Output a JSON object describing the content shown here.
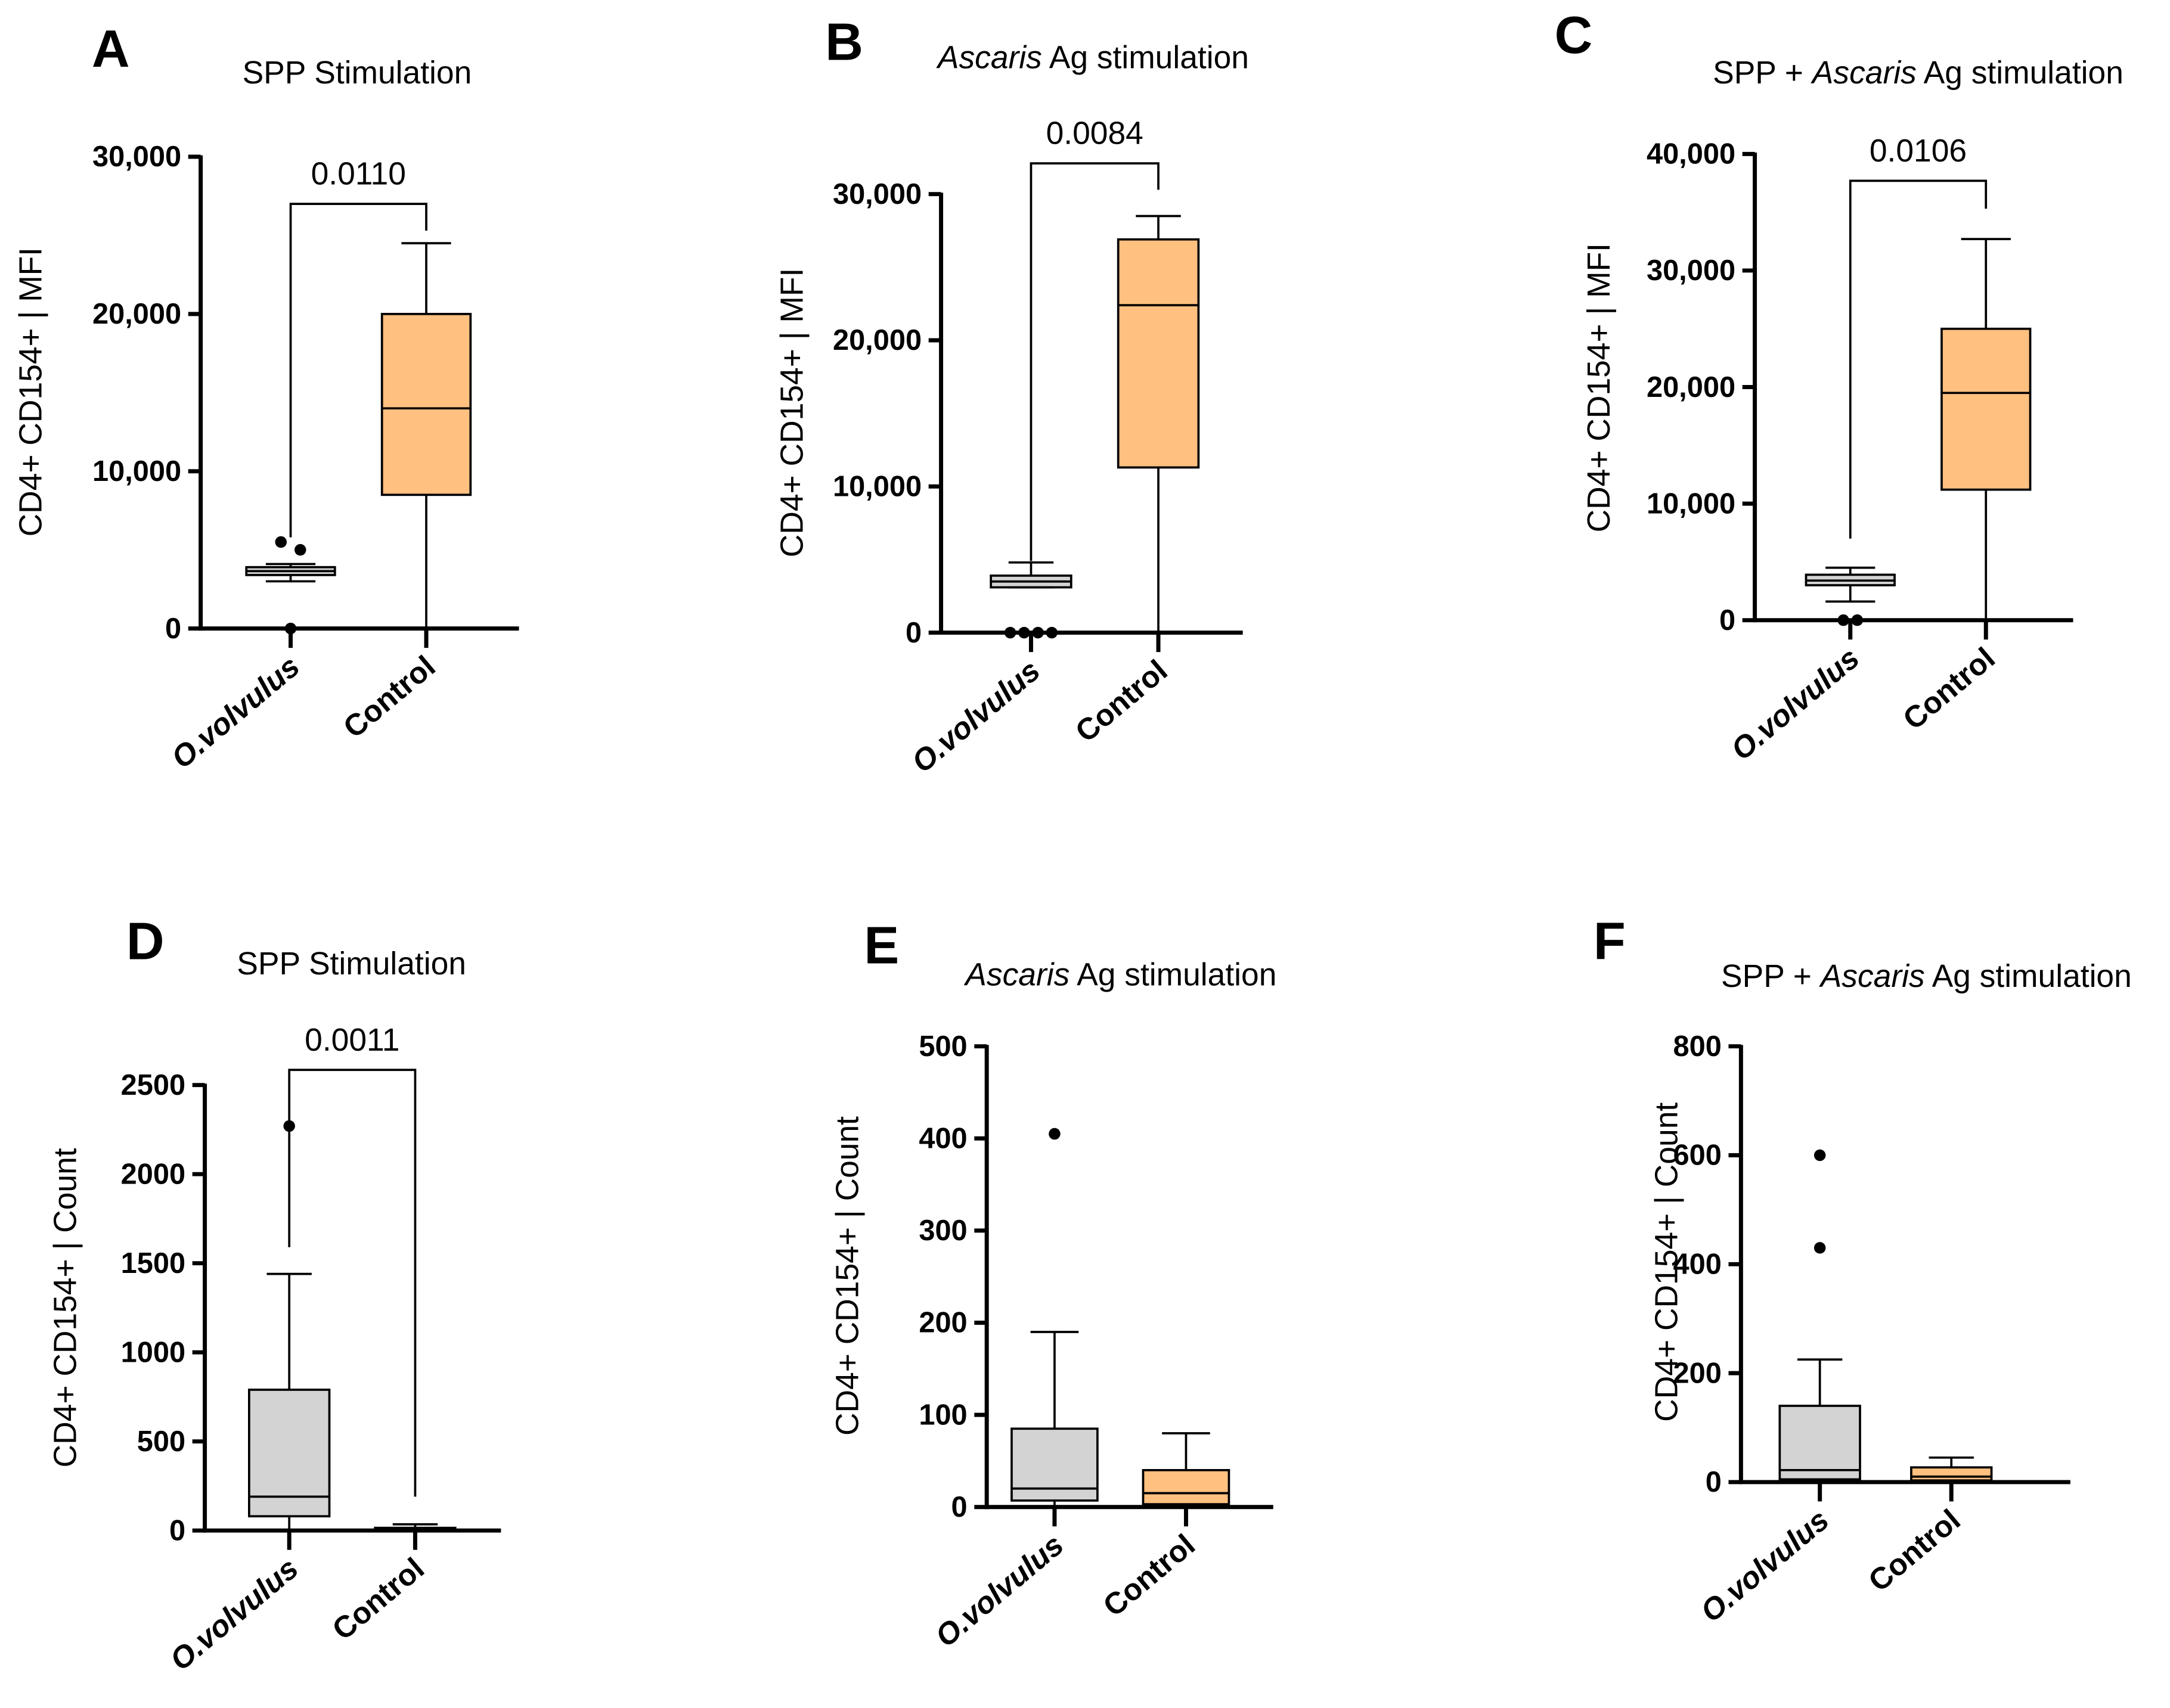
{
  "colors": {
    "ovolvulus": "#d3d3d3",
    "control": "#ffc080",
    "line": "#000000"
  },
  "chart_data": [
    {
      "type": "box",
      "panel": "A",
      "title": {
        "prefix": "SPP Stimulation",
        "italic": "",
        "suffix": ""
      },
      "ylabel": "CD4+ CD154+ | MFI",
      "ylim": [
        0,
        30000
      ],
      "yticks": [
        0,
        10000,
        20000,
        30000
      ],
      "yticklabels": [
        "0",
        "10,000",
        "20,000",
        "30,000"
      ],
      "categories": [
        "O.volvulus",
        "Control"
      ],
      "boxes": [
        {
          "min": 3000,
          "q1": 3400,
          "median": 3650,
          "q3": 3900,
          "max": 4100,
          "outliers": [
            5500,
            5000,
            0
          ]
        },
        {
          "min": 0,
          "q1": 8500,
          "median": 14000,
          "q3": 20000,
          "max": 24500,
          "outliers": []
        }
      ],
      "comparison": {
        "p": "0.0110",
        "level": 27000,
        "left_end": 5800,
        "right_end": 25300
      }
    },
    {
      "type": "box",
      "panel": "B",
      "title": {
        "prefix": "",
        "italic": "Ascaris",
        "suffix": " Ag stimulation"
      },
      "ylabel": "CD4+ CD154+ | MFI",
      "ylim": [
        0,
        30000
      ],
      "yticks": [
        0,
        10000,
        20000,
        30000
      ],
      "yticklabels": [
        "0",
        "10,000",
        "20,000",
        "30,000"
      ],
      "categories": [
        "O.volvulus",
        "Control"
      ],
      "boxes": [
        {
          "min": 3100,
          "q1": 3100,
          "median": 3500,
          "q3": 3900,
          "max": 4800,
          "outliers": [
            0,
            0,
            0,
            0
          ]
        },
        {
          "min": 0,
          "q1": 11300,
          "median": 22400,
          "q3": 26900,
          "max": 28500,
          "outliers": []
        }
      ],
      "comparison": {
        "p": "0.0084",
        "level": 32100,
        "left_end": 4900,
        "right_end": 30300
      }
    },
    {
      "type": "box",
      "panel": "C",
      "title": {
        "prefix": "SPP + ",
        "italic": "Ascaris",
        "suffix": " Ag stimulation"
      },
      "ylabel": "CD4+ CD154+ | MFI",
      "ylim": [
        0,
        40000
      ],
      "yticks": [
        0,
        10000,
        20000,
        30000,
        40000
      ],
      "yticklabels": [
        "0",
        "10,000",
        "20,000",
        "30,000",
        "40,000"
      ],
      "categories": [
        "O.volvulus",
        "Control"
      ],
      "boxes": [
        {
          "min": 1600,
          "q1": 3000,
          "median": 3400,
          "q3": 3900,
          "max": 4500,
          "outliers": [
            0,
            0
          ]
        },
        {
          "min": 0,
          "q1": 11200,
          "median": 19500,
          "q3": 25000,
          "max": 32700,
          "outliers": []
        }
      ],
      "comparison": {
        "p": "0.0106",
        "level": 37700,
        "left_end": 7000,
        "right_end": 35300
      }
    },
    {
      "type": "box",
      "panel": "D",
      "title": {
        "prefix": "SPP Stimulation",
        "italic": "",
        "suffix": ""
      },
      "ylabel": "CD4+ CD154+ | Count",
      "ylim": [
        0,
        2500
      ],
      "yticks": [
        0,
        500,
        1000,
        1500,
        2000,
        2500
      ],
      "yticklabels": [
        "0",
        "500",
        "1000",
        "1500",
        "2000",
        "2500"
      ],
      "categories": [
        "O.volvulus",
        "Control"
      ],
      "boxes": [
        {
          "min": 0,
          "q1": 80,
          "median": 190,
          "q3": 790,
          "max": 1440,
          "outliers": [
            2270
          ]
        },
        {
          "min": 0,
          "q1": 5,
          "median": 10,
          "q3": 15,
          "max": 35,
          "outliers": []
        }
      ],
      "comparison": {
        "p": "0.0011",
        "level": 2585,
        "left_end": 1590,
        "right_end": 190
      }
    },
    {
      "type": "box",
      "panel": "E",
      "title": {
        "prefix": "",
        "italic": "Ascaris",
        "suffix": " Ag stimulation"
      },
      "ylabel": "CD4+ CD154+ | Count",
      "ylim": [
        0,
        500
      ],
      "yticks": [
        0,
        100,
        200,
        300,
        400,
        500
      ],
      "yticklabels": [
        "0",
        "100",
        "200",
        "300",
        "400",
        "500"
      ],
      "categories": [
        "O.volvulus",
        "Control"
      ],
      "boxes": [
        {
          "min": 0,
          "q1": 7,
          "median": 20,
          "q3": 85,
          "max": 190,
          "outliers": [
            405
          ]
        },
        {
          "min": 0,
          "q1": 3,
          "median": 15,
          "q3": 40,
          "max": 80,
          "outliers": []
        }
      ],
      "comparison": null
    },
    {
      "type": "box",
      "panel": "F",
      "title": {
        "prefix": "SPP + ",
        "italic": "Ascaris",
        "suffix": " Ag stimulation"
      },
      "ylabel": "CD4+ CD154+ | Count",
      "ylim": [
        0,
        800
      ],
      "yticks": [
        0,
        200,
        400,
        600,
        800
      ],
      "yticklabels": [
        "0",
        "200",
        "400",
        "600",
        "800"
      ],
      "categories": [
        "O.volvulus",
        "Control"
      ],
      "boxes": [
        {
          "min": 0,
          "q1": 5,
          "median": 22,
          "q3": 140,
          "max": 225,
          "outliers": [
            600,
            430
          ]
        },
        {
          "min": 0,
          "q1": 3,
          "median": 10,
          "q3": 27,
          "max": 45,
          "outliers": []
        }
      ],
      "comparison": null
    }
  ]
}
